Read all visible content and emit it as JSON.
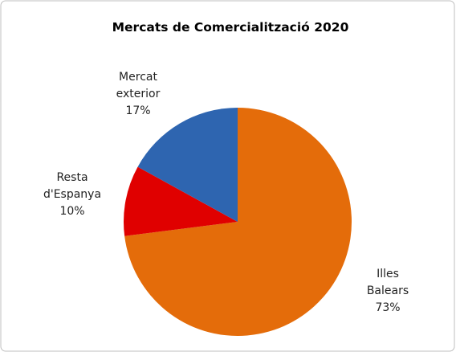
{
  "chart_data": {
    "type": "pie",
    "title": "Mercats de Comercialització 2020",
    "categories": [
      "Illes Balears",
      "Resta d'Espanya",
      "Mercat exterior"
    ],
    "values": [
      73,
      10,
      17
    ],
    "value_labels": [
      "73%",
      "10%",
      "17%"
    ],
    "colors": [
      "#e46c0a",
      "#e00000",
      "#2e65b0"
    ]
  }
}
